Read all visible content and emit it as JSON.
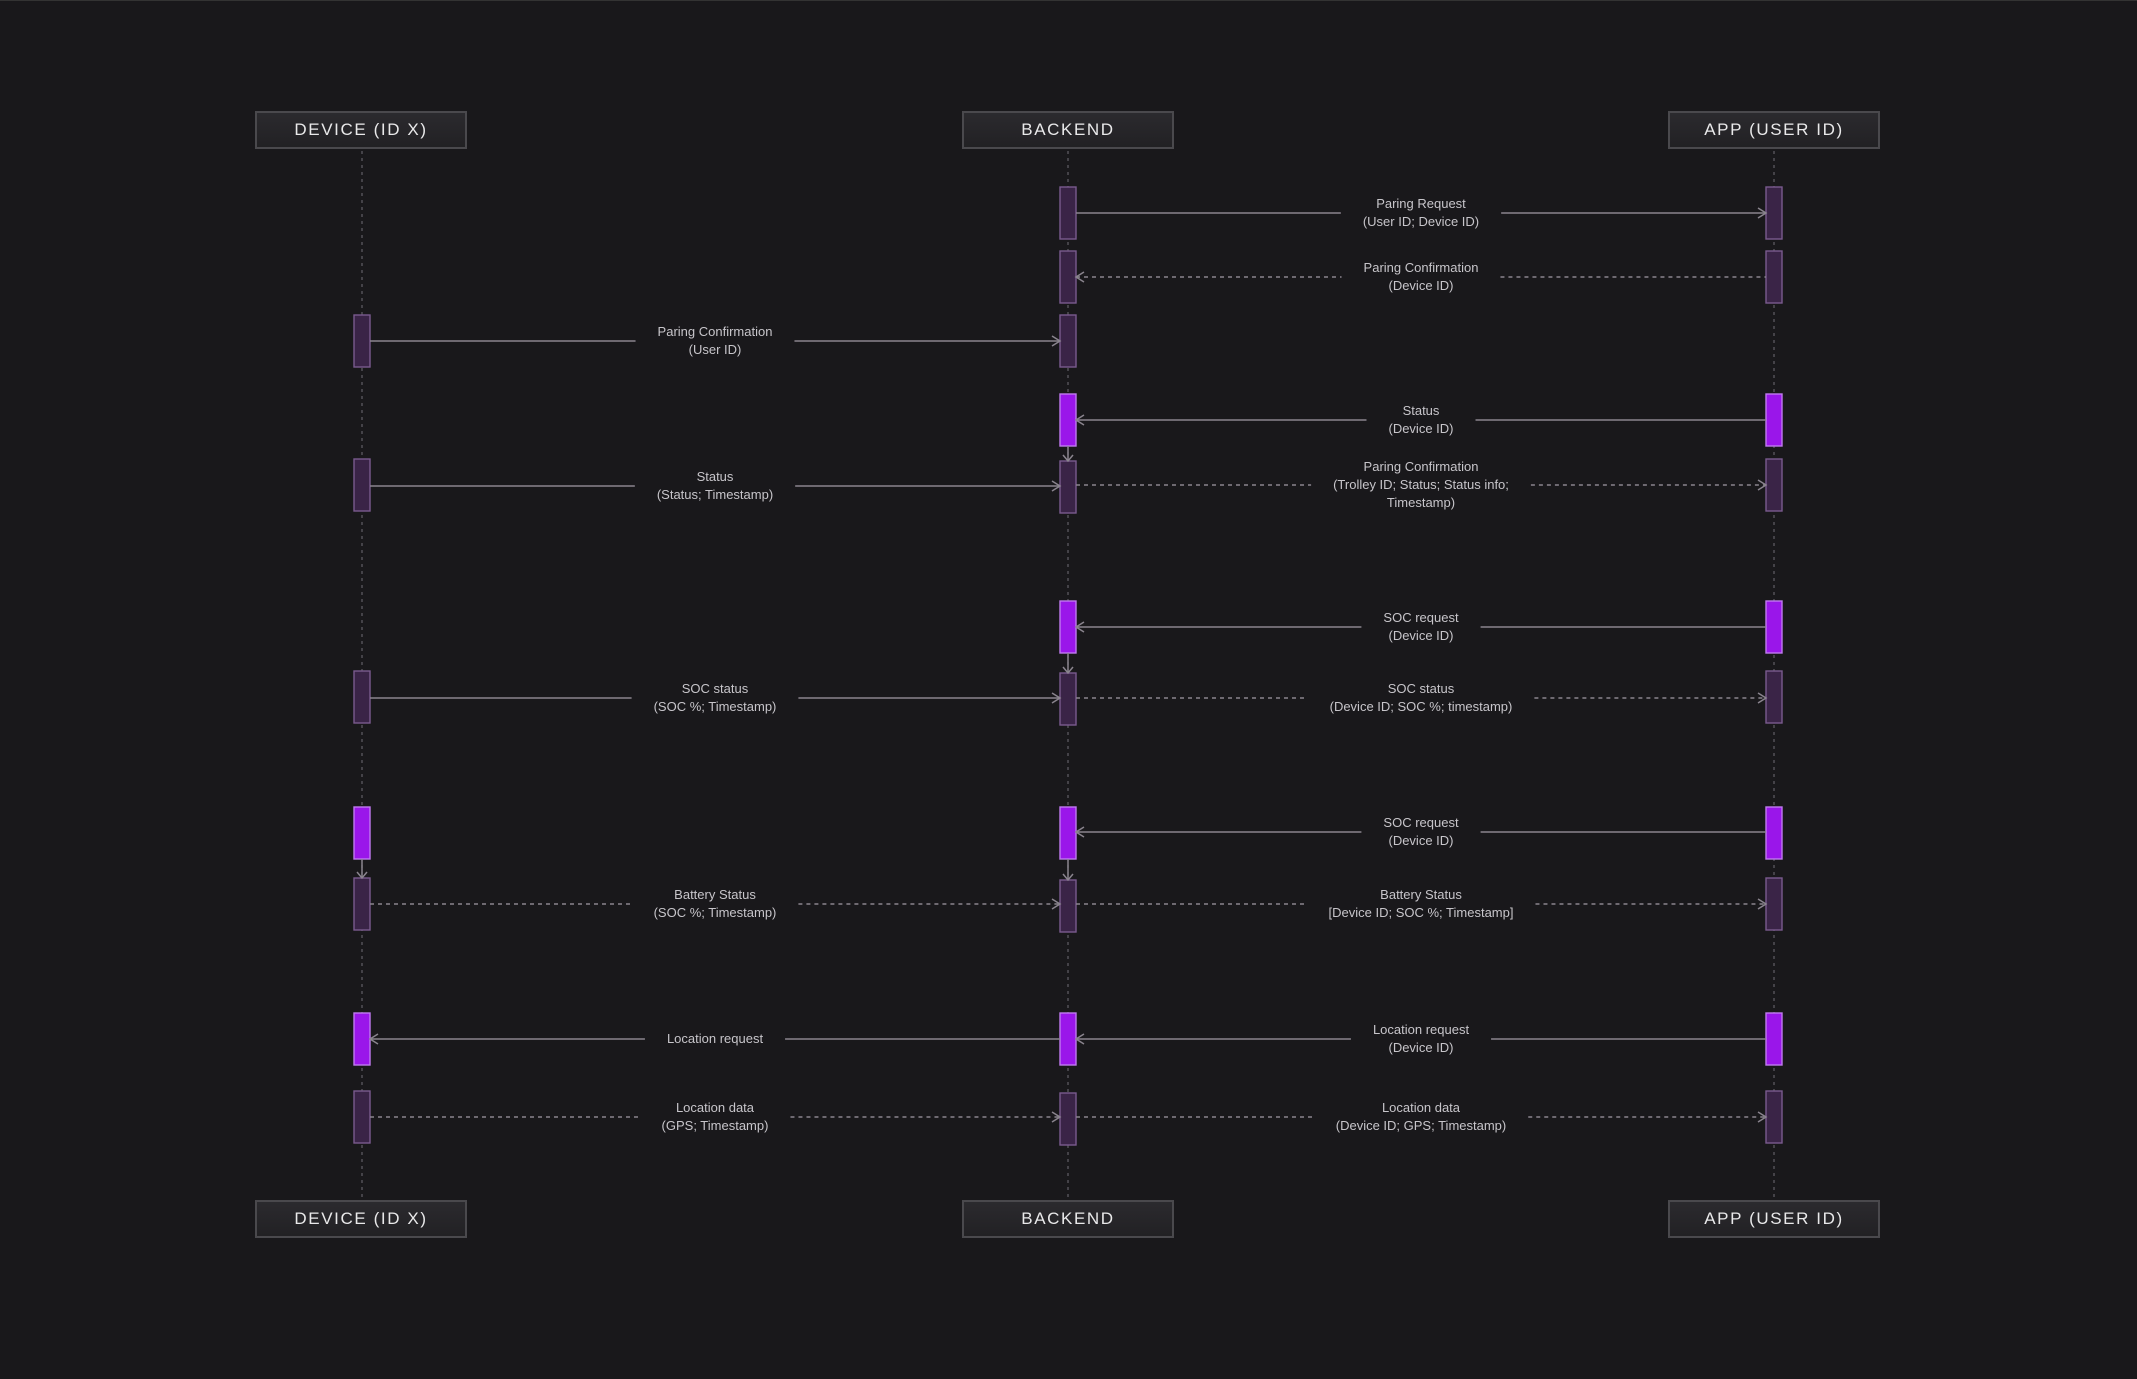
{
  "colors": {
    "background": "#19181b",
    "activation_dim": "#3a2447",
    "activation_highlight": "#9a16ea",
    "line": "#8a848e",
    "text": "#c7c5ca"
  },
  "actors": [
    {
      "id": "device",
      "label": "DEVICE (ID X)"
    },
    {
      "id": "backend",
      "label": "BACKEND"
    },
    {
      "id": "app",
      "label": "APP (USER ID)"
    }
  ],
  "messages": [
    {
      "from": "backend",
      "to": "app",
      "style": "solid",
      "lines": [
        "Paring Request",
        "(User ID; Device ID)"
      ]
    },
    {
      "from": "app",
      "to": "backend",
      "style": "dashed",
      "lines": [
        "Paring Confirmation",
        "(Device ID)"
      ]
    },
    {
      "from": "device",
      "to": "backend",
      "style": "solid",
      "lines": [
        "Paring Confirmation",
        "(User ID)"
      ]
    },
    {
      "from": "app",
      "to": "backend",
      "style": "solid",
      "lines": [
        "Status",
        "(Device ID)"
      ]
    },
    {
      "from": "device",
      "to": "backend",
      "style": "solid",
      "lines": [
        "Status",
        "(Status; Timestamp)"
      ]
    },
    {
      "from": "backend",
      "to": "app",
      "style": "dashed",
      "lines": [
        "Paring Confirmation",
        "(Trolley ID; Status; Status info;",
        "Timestamp)"
      ]
    },
    {
      "from": "app",
      "to": "backend",
      "style": "solid",
      "lines": [
        "SOC request",
        "(Device ID)"
      ]
    },
    {
      "from": "device",
      "to": "backend",
      "style": "solid",
      "lines": [
        "SOC status",
        "(SOC %; Timestamp)"
      ]
    },
    {
      "from": "backend",
      "to": "app",
      "style": "dashed",
      "lines": [
        "SOC status",
        "(Device ID; SOC %; timestamp)"
      ]
    },
    {
      "from": "app",
      "to": "backend",
      "style": "solid",
      "lines": [
        "SOC request",
        "(Device ID)"
      ]
    },
    {
      "from": "device",
      "to": "backend",
      "style": "dashed",
      "lines": [
        "Battery Status",
        "(SOC %; Timestamp)"
      ]
    },
    {
      "from": "backend",
      "to": "app",
      "style": "dashed",
      "lines": [
        "Battery Status",
        "[Device ID; SOC %; Timestamp]"
      ]
    },
    {
      "from": "backend",
      "to": "device",
      "style": "solid",
      "lines": [
        "Location request"
      ]
    },
    {
      "from": "app",
      "to": "backend",
      "style": "solid",
      "lines": [
        "Location request",
        "(Device ID)"
      ]
    },
    {
      "from": "device",
      "to": "backend",
      "style": "dashed",
      "lines": [
        "Location data",
        "(GPS; Timestamp)"
      ]
    },
    {
      "from": "backend",
      "to": "app",
      "style": "dashed",
      "lines": [
        "Location data",
        "(Device ID; GPS; Timestamp)"
      ]
    }
  ]
}
